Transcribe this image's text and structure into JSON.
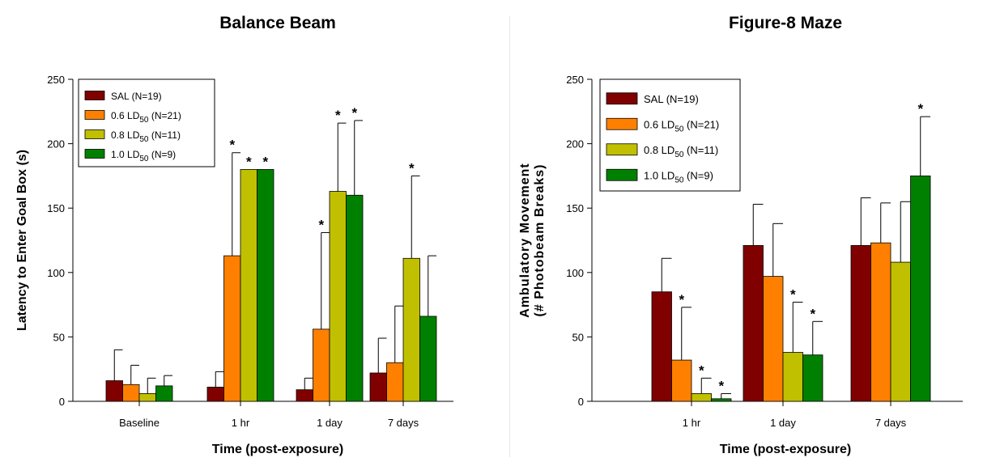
{
  "chart_data": [
    {
      "type": "bar",
      "title": "Balance Beam",
      "xlabel": "Time (post-exposure)",
      "ylabel": "Latency to Enter Goal Box (s)",
      "ylim": [
        0,
        250
      ],
      "yticks": [
        0,
        50,
        100,
        150,
        200,
        250
      ],
      "categories": [
        "Baseline",
        "1 hr",
        "1 day",
        "7 days"
      ],
      "legend_position": "top-left",
      "grid": false,
      "series": [
        {
          "name": "SAL (N=19)",
          "label_main": "SAL",
          "label_sub": "",
          "label_tail": " (N=19)",
          "color": "#800000",
          "values": [
            16,
            11,
            9,
            22
          ],
          "errors": [
            24,
            12,
            9,
            27
          ],
          "significant": [
            false,
            false,
            false,
            false
          ]
        },
        {
          "name": "0.6 LD50 (N=21)",
          "label_main": "0.6 LD",
          "label_sub": "50",
          "label_tail": " (N=21)",
          "color": "#ff8000",
          "values": [
            13,
            113,
            56,
            30
          ],
          "errors": [
            15,
            80,
            75,
            44
          ],
          "significant": [
            false,
            true,
            true,
            false
          ]
        },
        {
          "name": "0.8 LD50 (N=11)",
          "label_main": "0.8 LD",
          "label_sub": "50",
          "label_tail": " (N=11)",
          "color": "#c0c000",
          "values": [
            6,
            180,
            163,
            111
          ],
          "errors": [
            12,
            0,
            53,
            64
          ],
          "significant": [
            false,
            true,
            true,
            true
          ]
        },
        {
          "name": "1.0 LD50 (N=9)",
          "label_main": "1.0 LD",
          "label_sub": "50",
          "label_tail": " (N=9)",
          "color": "#008000",
          "values": [
            12,
            180,
            160,
            66
          ],
          "errors": [
            8,
            0,
            58,
            47
          ],
          "significant": [
            false,
            true,
            true,
            false
          ]
        }
      ]
    },
    {
      "type": "bar",
      "title": "Figure-8 Maze",
      "xlabel": "Time (post-exposure)",
      "ylabel": "Ambulatory Movement",
      "ylabel2": "(# Photobeam  Breaks)",
      "ylim": [
        0,
        250
      ],
      "yticks": [
        0,
        50,
        100,
        150,
        200,
        250
      ],
      "categories": [
        "1 hr",
        "1 day",
        "7 days"
      ],
      "legend_position": "top-left",
      "grid": false,
      "series": [
        {
          "name": "SAL (N=19)",
          "label_main": "SAL",
          "label_sub": "",
          "label_tail": " (N=19)",
          "color": "#800000",
          "values": [
            85,
            121,
            121
          ],
          "errors": [
            26,
            32,
            37
          ],
          "significant": [
            false,
            false,
            false
          ]
        },
        {
          "name": "0.6 LD50 (N=21)",
          "label_main": "0.6 LD",
          "label_sub": "50",
          "label_tail": " (N=21)",
          "color": "#ff8000",
          "values": [
            32,
            97,
            123
          ],
          "errors": [
            41,
            41,
            31
          ],
          "significant": [
            true,
            false,
            false
          ]
        },
        {
          "name": "0.8 LD50 (N=11)",
          "label_main": "0.8 LD",
          "label_sub": "50",
          "label_tail": " (N=11)",
          "color": "#c0c000",
          "values": [
            6,
            38,
            108
          ],
          "errors": [
            12,
            39,
            47
          ],
          "significant": [
            true,
            true,
            false
          ]
        },
        {
          "name": "1.0 LD50 (N=9)",
          "label_main": "1.0 LD",
          "label_sub": "50",
          "label_tail": " (N=9)",
          "color": "#008000",
          "values": [
            2,
            36,
            175
          ],
          "errors": [
            4,
            26,
            46
          ],
          "significant": [
            true,
            true,
            true
          ]
        }
      ]
    }
  ]
}
